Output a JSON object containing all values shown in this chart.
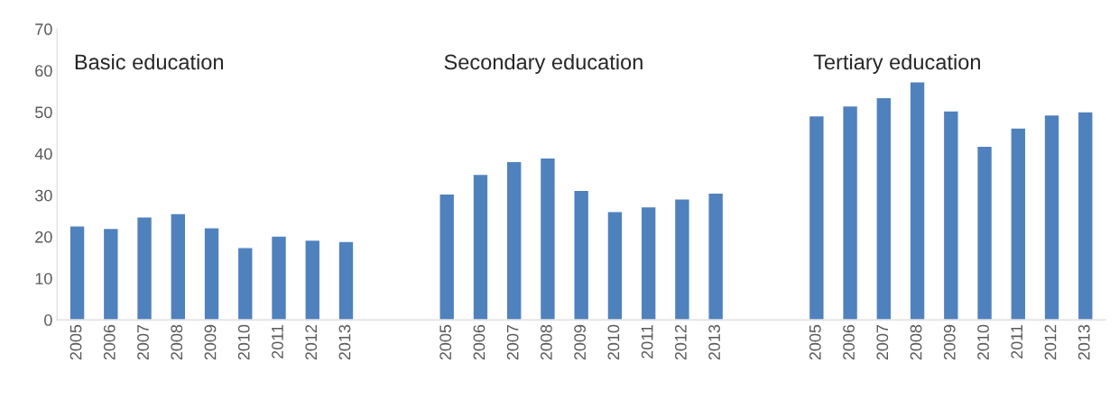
{
  "chart_data": {
    "type": "bar",
    "categories": [
      "2005",
      "2006",
      "2007",
      "2008",
      "2009",
      "2010",
      "2011",
      "2012",
      "2013",
      null,
      null,
      "2005",
      "2006",
      "2007",
      "2008",
      "2009",
      "2010",
      "2011",
      "2012",
      "2013",
      null,
      null,
      "2005",
      "2006",
      "2007",
      "2008",
      "2009",
      "2010",
      "2011",
      "2012",
      "2013"
    ],
    "values": [
      22.6,
      22.0,
      24.8,
      25.6,
      22.2,
      17.4,
      20.2,
      19.2,
      18.9,
      null,
      null,
      30.3,
      35.0,
      38.1,
      39.0,
      31.2,
      26.1,
      27.2,
      29.1,
      30.5,
      null,
      null,
      49.1,
      51.5,
      53.5,
      57.3,
      50.3,
      41.8,
      46.2,
      49.3,
      50.1
    ],
    "color": "#4f81bd",
    "ylim": [
      0,
      70
    ],
    "yticks": [
      0,
      10,
      20,
      30,
      40,
      50,
      60,
      70
    ],
    "grid": false,
    "annotations": [
      "Basic education",
      "Secondary education",
      "Tertiary education"
    ]
  }
}
